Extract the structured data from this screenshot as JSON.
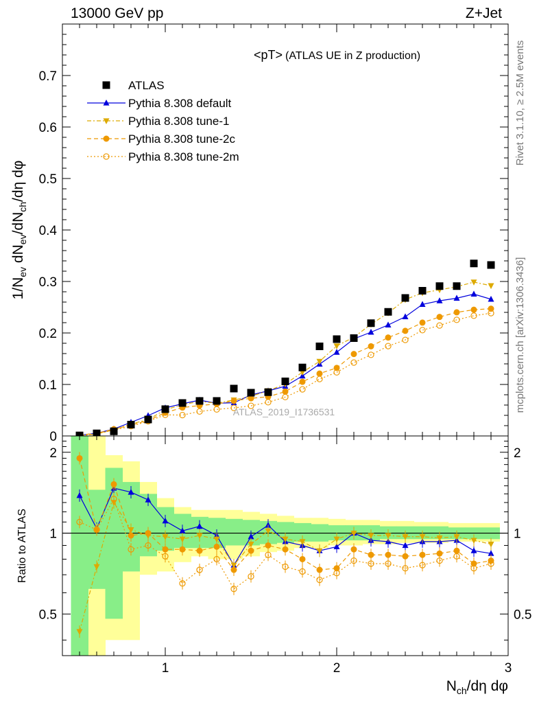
{
  "header": {
    "left": "13000 GeV pp",
    "right": "Z+Jet"
  },
  "side_labels": {
    "rivet": "Rivet 3.1.10, ≥ 2.5M events",
    "mcplots": "mcplots.cern.ch [arXiv:1306.3436]"
  },
  "chart_data": [
    {
      "type": "scatter",
      "title": "<pT>",
      "subtitle": "(ATLAS UE in Z production)",
      "watermark": "ATLAS_2019_I1736531",
      "xlabel": "N_ch/dη dφ",
      "ylabel": "1/N_ev dN_ev/dN_ch/dη dφ",
      "xlim": [
        0.4,
        3.0
      ],
      "ylim": [
        0,
        0.8
      ],
      "y_ticks": [
        "0",
        "0.1",
        "0.2",
        "0.3",
        "0.4",
        "0.5",
        "0.6",
        "0.7"
      ],
      "x": [
        0.5,
        0.6,
        0.7,
        0.8,
        0.9,
        1.0,
        1.1,
        1.2,
        1.3,
        1.4,
        1.5,
        1.6,
        1.7,
        1.8,
        1.9,
        2.0,
        2.1,
        2.2,
        2.3,
        2.4,
        2.5,
        2.6,
        2.7,
        2.8,
        2.9
      ],
      "legend_position": "top-left",
      "series": [
        {
          "name": "ATLAS",
          "color": "#000000",
          "marker": "square",
          "line": "none",
          "values": [
            0.001,
            0.005,
            0.009,
            0.022,
            0.032,
            0.052,
            0.064,
            0.068,
            0.068,
            0.092,
            0.084,
            0.085,
            0.106,
            0.133,
            0.174,
            0.188,
            0.19,
            0.219,
            0.241,
            0.268,
            0.282,
            0.291,
            0.291,
            0.335,
            0.332
          ]
        },
        {
          "name": "Pythia 8.308 default",
          "color": "#0000dd",
          "marker": "triangle-up",
          "line": "solid",
          "values": [
            0.0014,
            0.0052,
            0.0135,
            0.0265,
            0.0395,
            0.0545,
            0.0625,
            0.0695,
            0.0635,
            0.0645,
            0.0795,
            0.0875,
            0.0965,
            0.1165,
            0.1395,
            0.1625,
            0.1885,
            0.2015,
            0.2155,
            0.2315,
            0.2555,
            0.2625,
            0.2675,
            0.2755,
            0.2655
          ]
        },
        {
          "name": "Pythia 8.308 tune-1",
          "color": "#ddaa00",
          "marker": "triangle-down",
          "line": "dashdot",
          "values": [
            0.0004,
            0.0038,
            0.0118,
            0.0232,
            0.0318,
            0.0508,
            0.0608,
            0.0668,
            0.0638,
            0.0698,
            0.0768,
            0.0878,
            0.1008,
            0.1238,
            0.1448,
            0.1748,
            0.1918,
            0.2168,
            0.2388,
            0.2648,
            0.2778,
            0.2838,
            0.2898,
            0.2988,
            0.2918
          ]
        },
        {
          "name": "Pythia 8.308 tune-2c",
          "color": "#ee9900",
          "marker": "circle",
          "line": "dashed",
          "values": [
            0.0019,
            0.0051,
            0.0131,
            0.0211,
            0.0301,
            0.0451,
            0.0551,
            0.0591,
            0.0621,
            0.0681,
            0.0731,
            0.0761,
            0.0861,
            0.1051,
            0.1211,
            0.1321,
            0.1591,
            0.1741,
            0.1911,
            0.2041,
            0.2201,
            0.2311,
            0.2401,
            0.2451,
            0.2471
          ]
        },
        {
          "name": "Pythia 8.308 tune-2m",
          "color": "#ee9900",
          "marker": "circle-open",
          "line": "dotted",
          "values": [
            0.001,
            0.0044,
            0.0114,
            0.019,
            0.0285,
            0.041,
            0.0405,
            0.0475,
            0.0515,
            0.0545,
            0.0585,
            0.0655,
            0.0755,
            0.0905,
            0.1105,
            0.1235,
            0.1425,
            0.1575,
            0.1745,
            0.1865,
            0.2055,
            0.2145,
            0.2255,
            0.2335,
            0.2385
          ]
        }
      ]
    },
    {
      "type": "scatter",
      "ylabel": "Ratio to ATLAS",
      "xlabel": "N_ch/dη dφ",
      "xlim": [
        0.4,
        3.0
      ],
      "ylim": [
        0.35,
        2.3
      ],
      "y_scale": "log",
      "reference_line": 1.0,
      "x_ticks": [
        "1",
        "2",
        "3"
      ],
      "y_ticks": [
        "0.5",
        "1",
        "2"
      ],
      "x": [
        0.5,
        0.6,
        0.7,
        0.8,
        0.9,
        1.0,
        1.1,
        1.2,
        1.3,
        1.4,
        1.5,
        1.6,
        1.7,
        1.8,
        1.9,
        2.0,
        2.1,
        2.2,
        2.3,
        2.4,
        2.5,
        2.6,
        2.7,
        2.8,
        2.9
      ],
      "bands": {
        "edges": [
          0.45,
          0.55,
          0.65,
          0.75,
          0.85,
          0.95,
          1.05,
          1.15,
          1.25,
          1.35,
          1.45,
          1.55,
          1.65,
          1.75,
          1.85,
          1.95,
          2.05,
          2.15,
          2.25,
          2.35,
          2.45,
          2.55,
          2.65,
          2.75,
          2.85,
          2.95
        ],
        "yellow_low": [
          0.3,
          0.3,
          0.4,
          0.4,
          0.7,
          0.72,
          0.78,
          0.82,
          0.8,
          0.8,
          0.82,
          0.85,
          0.86,
          0.88,
          0.88,
          0.9,
          0.9,
          0.91,
          0.91,
          0.92,
          0.92,
          0.92,
          0.93,
          0.93,
          0.93
        ],
        "yellow_high": [
          2.5,
          2.5,
          1.95,
          1.85,
          1.55,
          1.35,
          1.25,
          1.22,
          1.22,
          1.22,
          1.2,
          1.18,
          1.16,
          1.14,
          1.14,
          1.13,
          1.12,
          1.12,
          1.11,
          1.11,
          1.1,
          1.1,
          1.09,
          1.09,
          1.09
        ],
        "green_low": [
          0.3,
          0.62,
          0.48,
          0.72,
          0.82,
          0.86,
          0.88,
          0.88,
          0.88,
          0.9,
          0.9,
          0.91,
          0.92,
          0.93,
          0.93,
          0.94,
          0.94,
          0.94,
          0.95,
          0.95,
          0.95,
          0.95,
          0.95,
          0.95,
          0.95
        ],
        "green_high": [
          2.5,
          1.45,
          1.75,
          1.55,
          1.4,
          1.25,
          1.18,
          1.15,
          1.14,
          1.13,
          1.12,
          1.11,
          1.1,
          1.09,
          1.08,
          1.07,
          1.07,
          1.07,
          1.06,
          1.06,
          1.06,
          1.06,
          1.05,
          1.05,
          1.05
        ]
      },
      "series": [
        {
          "name": "Pythia 8.308 default",
          "color": "#0000dd",
          "values": [
            1.38,
            1.04,
            1.47,
            1.42,
            1.33,
            1.11,
            1.02,
            1.06,
            0.98,
            0.76,
            0.97,
            1.07,
            0.93,
            0.9,
            0.86,
            0.89,
            1.0,
            0.94,
            0.93,
            0.9,
            0.93,
            0.93,
            0.94,
            0.86,
            0.84
          ]
        },
        {
          "name": "Pythia 8.308 tune-1",
          "color": "#ddaa00",
          "values": [
            0.43,
            0.75,
            1.3,
            1.03,
            0.98,
            0.97,
            0.95,
            0.98,
            0.95,
            0.76,
            0.91,
            1.02,
            0.95,
            0.93,
            0.86,
            0.95,
            1.0,
            0.98,
            0.98,
            0.97,
            0.97,
            0.96,
            0.97,
            0.94,
            0.91
          ]
        },
        {
          "name": "Pythia 8.308 tune-2c",
          "color": "#ee9900",
          "values": [
            1.9,
            1.03,
            1.52,
            0.98,
            1.0,
            0.87,
            0.87,
            0.86,
            0.89,
            0.73,
            0.86,
            0.9,
            0.87,
            0.8,
            0.73,
            0.74,
            0.87,
            0.83,
            0.83,
            0.82,
            0.83,
            0.84,
            0.86,
            0.77,
            0.79
          ]
        },
        {
          "name": "Pythia 8.308 tune-2m",
          "color": "#ee9900",
          "values": [
            1.1,
            1.03,
            1.34,
            0.87,
            0.9,
            0.82,
            0.65,
            0.73,
            0.8,
            0.62,
            0.69,
            0.83,
            0.75,
            0.72,
            0.67,
            0.71,
            0.79,
            0.77,
            0.77,
            0.74,
            0.76,
            0.79,
            0.82,
            0.74,
            0.77
          ]
        }
      ]
    }
  ]
}
